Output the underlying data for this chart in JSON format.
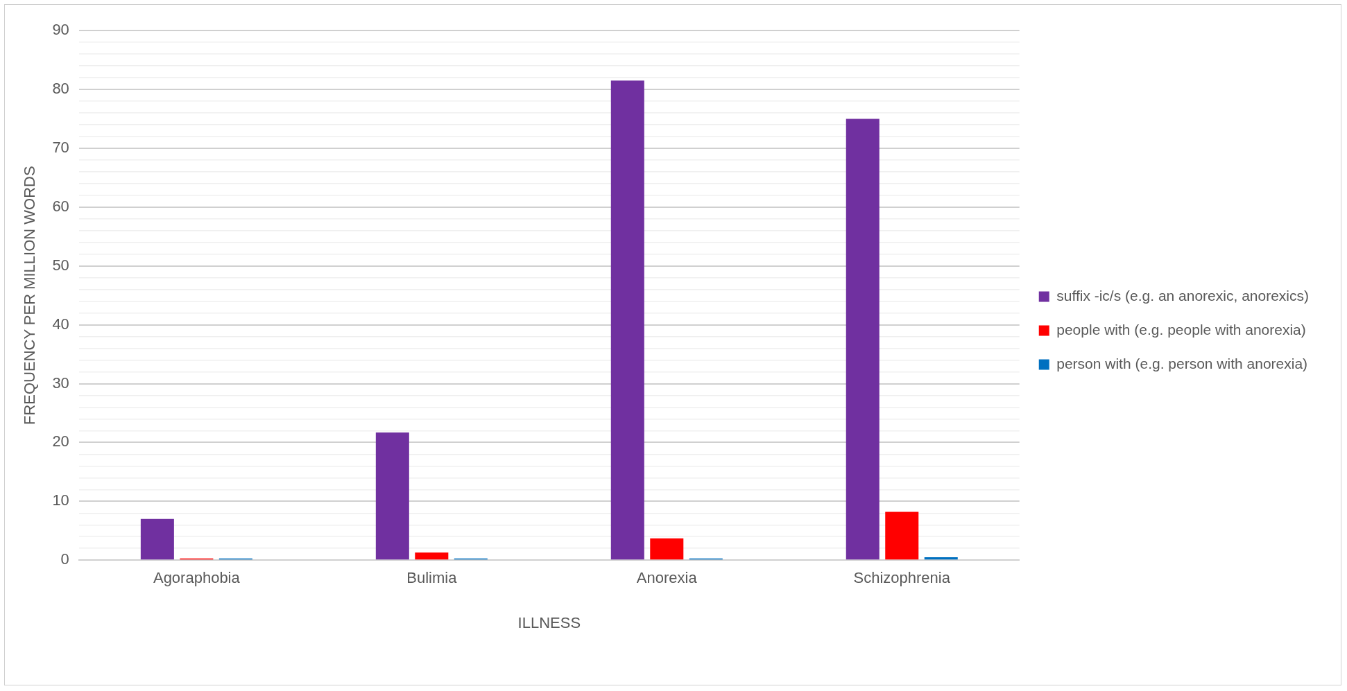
{
  "chart_data": {
    "type": "bar",
    "xlabel": "ILLNESS",
    "ylabel": "FREQUENCY PER MILLION WORDS",
    "categories": [
      "Agoraphobia",
      "Bulimia",
      "Anorexia",
      "Schizophrenia"
    ],
    "series": [
      {
        "name": "suffix -ic/s (e.g. an anorexic, anorexics)",
        "color": "#7030a0",
        "values": [
          7,
          21.7,
          81.5,
          75
        ]
      },
      {
        "name": "people with (e.g. people with anorexia)",
        "color": "#ff0000",
        "values": [
          0.3,
          1.3,
          3.7,
          8.2
        ]
      },
      {
        "name": "person with (e.g. person with anorexia)",
        "color": "#0070c0",
        "values": [
          0.3,
          0.3,
          0.3,
          0.5
        ]
      }
    ],
    "ylim": [
      0,
      90
    ],
    "yticks": [
      0,
      {
        "value": 2,
        "label": null
      },
      {
        "value": 4,
        "label": null
      },
      {
        "value": 6,
        "label": null
      },
      {
        "value": 8,
        "label": null
      },
      10,
      {
        "value": 12,
        "label": null
      },
      {
        "value": 14,
        "label": null
      },
      {
        "value": 16,
        "label": null
      },
      {
        "value": 18,
        "label": null
      },
      20,
      {
        "value": 22,
        "label": null
      },
      {
        "value": 24,
        "label": null
      },
      {
        "value": 26,
        "label": null
      },
      {
        "value": 28,
        "label": null
      },
      30,
      {
        "value": 32,
        "label": null
      },
      {
        "value": 34,
        "label": null
      },
      {
        "value": 36,
        "label": null
      },
      {
        "value": 38,
        "label": null
      },
      40,
      {
        "value": 42,
        "label": null
      },
      {
        "value": 44,
        "label": null
      },
      {
        "value": 46,
        "label": null
      },
      {
        "value": 48,
        "label": null
      },
      50,
      {
        "value": 52,
        "label": null
      },
      {
        "value": 54,
        "label": null
      },
      {
        "value": 56,
        "label": null
      },
      {
        "value": 58,
        "label": null
      },
      60,
      {
        "value": 62,
        "label": null
      },
      {
        "value": 64,
        "label": null
      },
      {
        "value": 66,
        "label": null
      },
      {
        "value": 68,
        "label": null
      },
      70,
      {
        "value": 72,
        "label": null
      },
      {
        "value": 74,
        "label": null
      },
      {
        "value": 76,
        "label": null
      },
      {
        "value": 78,
        "label": null
      },
      80,
      {
        "value": 82,
        "label": null
      },
      {
        "value": 84,
        "label": null
      },
      {
        "value": 86,
        "label": null
      },
      {
        "value": 88,
        "label": null
      },
      90
    ],
    "grid": "y",
    "legend": "right"
  }
}
